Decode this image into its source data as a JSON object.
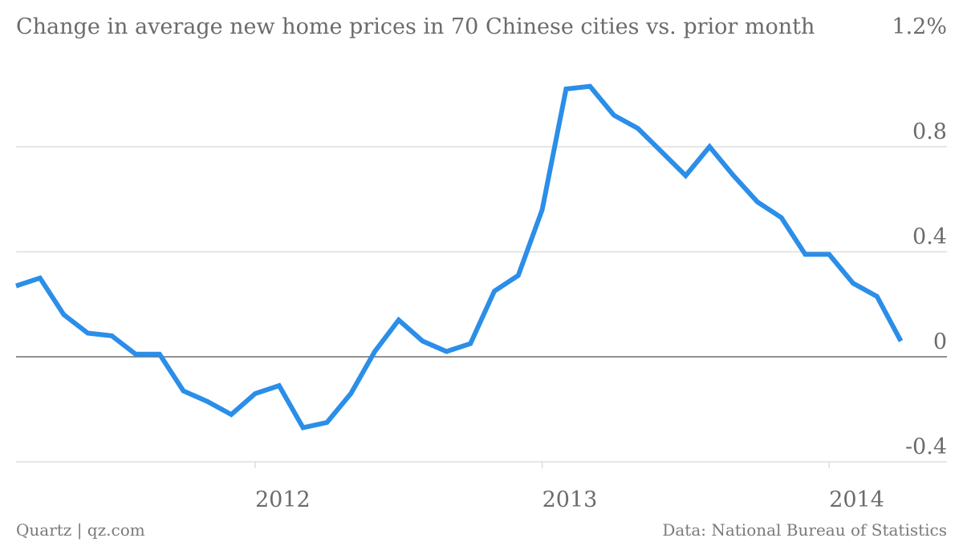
{
  "chart_data": {
    "type": "line",
    "title": "Change in average new home prices in 70 Chinese cities vs. prior month",
    "xlabel": "",
    "ylabel": "",
    "ylim": [
      -0.4,
      1.2
    ],
    "y_ticks": [
      "1.2%",
      "0.8",
      "0.4",
      "0",
      "-0.4"
    ],
    "x_ticks": [
      "2012",
      "2013",
      "2014"
    ],
    "grid": true,
    "line_color": "#2b8ee8",
    "series": [
      {
        "x": [
          "2011-03",
          "2011-04",
          "2011-05",
          "2011-06",
          "2011-07",
          "2011-08",
          "2011-09",
          "2011-10",
          "2011-11",
          "2011-12",
          "2012-01",
          "2012-02",
          "2012-03",
          "2012-04",
          "2012-05",
          "2012-06",
          "2012-07",
          "2012-08",
          "2012-09",
          "2012-10",
          "2012-11",
          "2012-12",
          "2013-01",
          "2013-02",
          "2013-03",
          "2013-04",
          "2013-05",
          "2013-06",
          "2013-07",
          "2013-08",
          "2013-09",
          "2013-10",
          "2013-11",
          "2013-12",
          "2014-01",
          "2014-02",
          "2014-03",
          "2014-04"
        ],
        "values": [
          0.27,
          0.3,
          0.16,
          0.09,
          0.08,
          0.01,
          0.01,
          -0.13,
          -0.17,
          -0.22,
          -0.14,
          -0.11,
          -0.27,
          -0.25,
          -0.14,
          0.02,
          0.14,
          0.06,
          0.02,
          0.05,
          0.25,
          0.31,
          0.56,
          1.02,
          1.03,
          0.92,
          0.87,
          0.78,
          0.69,
          0.8,
          0.69,
          0.59,
          0.53,
          0.39,
          0.39,
          0.28,
          0.23,
          0.06
        ]
      }
    ]
  },
  "footer": {
    "left": "Quartz | qz.com",
    "right": "Data: National Bureau of Statistics"
  }
}
